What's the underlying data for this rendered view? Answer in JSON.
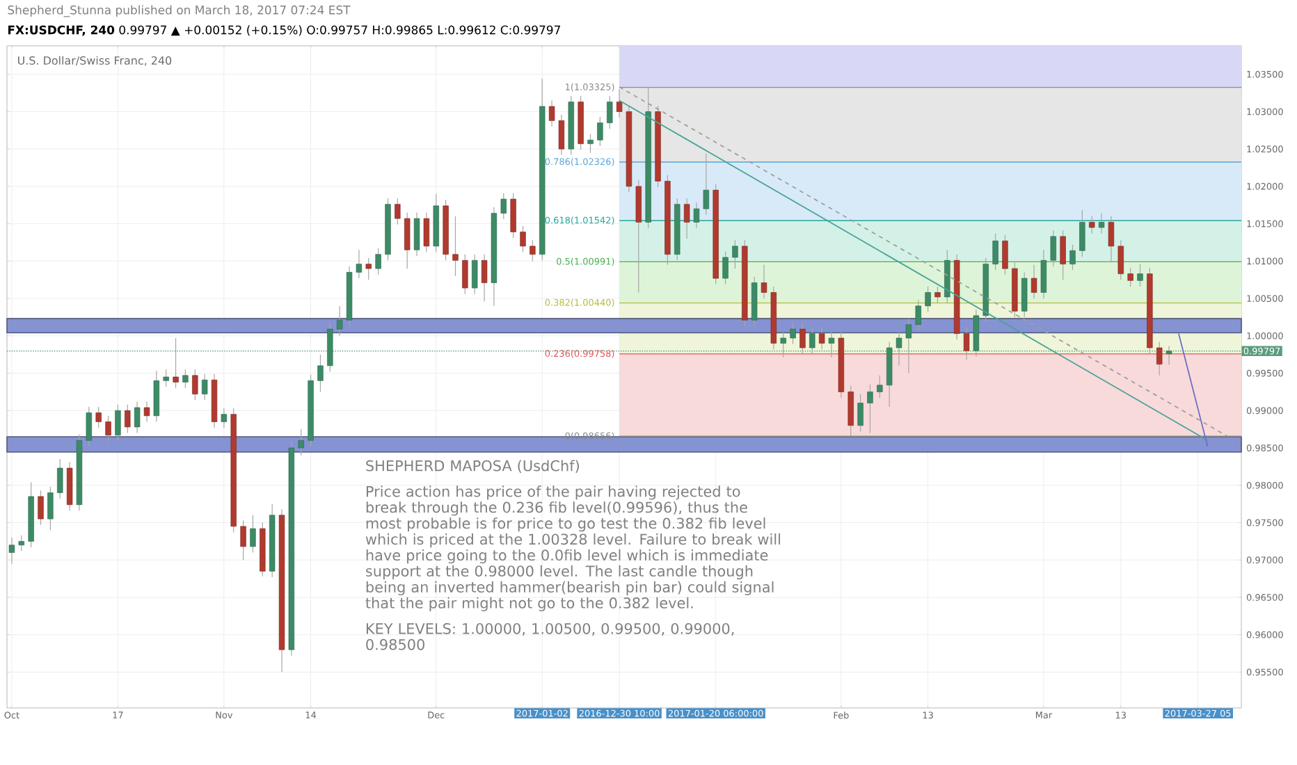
{
  "chart_data": {
    "type": "candlestick",
    "subtitle": "Shepherd_Stunna published on March 18, 2017 07:24 EST",
    "title": "**FX:USDCHF, 240** 0.99797 ▲ +0.00152 (+0.15%) O:0.99757 H:0.99865 L:0.99612 C:0.99797",
    "annotations": [
      "U.S. Dollar/Swiss Franc, 240",
      "SHEPHERD MAPOSA (UsdChf)",
      "Price action has price of the pair having rejected to break through the 0.236 fib level(0.99596), thus the most probable is for price to go test the 0.382 fib level which is priced at the 1.00328 level. Failure to break will have price going to the 0.0fib level which is immediate support at the 0.98000 level. The last candle though being an inverted hammer(bearish pin bar) could signal that the pair might not go to the 0.382 level.",
      "KEY LEVELS: 1.00000, 1.00500, 0.99500, 0.99000, 0.98500"
    ],
    "categories": [
      "Oct",
      null,
      null,
      null,
      null,
      null,
      null,
      null,
      null,
      null,
      null,
      "17",
      null,
      null,
      null,
      null,
      null,
      null,
      null,
      null,
      null,
      null,
      "Nov",
      null,
      null,
      null,
      null,
      null,
      null,
      null,
      null,
      "14",
      null,
      null,
      null,
      null,
      null,
      null,
      null,
      null,
      null,
      null,
      null,
      null,
      "Dec",
      null,
      null,
      null,
      null,
      null,
      null,
      null,
      null,
      null,
      null,
      "2017-01-02",
      null,
      null,
      null,
      null,
      null,
      null,
      null,
      "2016-12-30 10:00",
      null,
      null,
      null,
      null,
      null,
      null,
      null,
      null,
      null,
      "2017-01-20 06:00:00",
      null,
      null,
      null,
      null,
      null,
      null,
      null,
      null,
      null,
      null,
      null,
      null,
      "Feb",
      null,
      null,
      null,
      null,
      null,
      null,
      null,
      null,
      "13",
      null,
      null,
      null,
      null,
      null,
      null,
      null,
      null,
      null,
      null,
      null,
      "Mar",
      null,
      null,
      null,
      null,
      null,
      null,
      null,
      "13",
      null,
      null,
      null,
      null,
      null,
      null,
      null,
      "2017-03-27 05",
      null,
      null,
      null,
      null
    ],
    "ohlc": [
      [
        0.971,
        0.973,
        0.9695,
        0.972
      ],
      [
        0.972,
        0.9733,
        0.9712,
        0.9725
      ],
      [
        0.9725,
        0.9804,
        0.9717,
        0.9785
      ],
      [
        0.9785,
        0.9793,
        0.9747,
        0.9755
      ],
      [
        0.9755,
        0.9798,
        0.974,
        0.979
      ],
      [
        0.979,
        0.9835,
        0.9782,
        0.9823
      ],
      [
        0.9823,
        0.9831,
        0.9766,
        0.9774
      ],
      [
        0.9774,
        0.9868,
        0.9766,
        0.986
      ],
      [
        0.986,
        0.9905,
        0.9852,
        0.9897
      ],
      [
        0.9897,
        0.9905,
        0.9877,
        0.9885
      ],
      [
        0.9885,
        0.9893,
        0.9859,
        0.9867
      ],
      [
        0.9867,
        0.9908,
        0.9859,
        0.99
      ],
      [
        0.99,
        0.9908,
        0.987,
        0.9878
      ],
      [
        0.9878,
        0.9912,
        0.987,
        0.9904
      ],
      [
        0.9904,
        0.9912,
        0.9885,
        0.9893
      ],
      [
        0.9893,
        0.9953,
        0.9885,
        0.994
      ],
      [
        0.994,
        0.9955,
        0.9932,
        0.9945
      ],
      [
        0.9945,
        0.9997,
        0.993,
        0.9938
      ],
      [
        0.9938,
        0.9955,
        0.993,
        0.9947
      ],
      [
        0.9947,
        0.9955,
        0.9914,
        0.9922
      ],
      [
        0.9922,
        0.9949,
        0.9914,
        0.9941
      ],
      [
        0.9941,
        0.9949,
        0.9877,
        0.9885
      ],
      [
        0.9885,
        0.9903,
        0.9877,
        0.9895
      ],
      [
        0.9895,
        0.9903,
        0.9737,
        0.9745
      ],
      [
        0.9745,
        0.9753,
        0.97,
        0.9718
      ],
      [
        0.9718,
        0.976,
        0.971,
        0.9742
      ],
      [
        0.9742,
        0.975,
        0.9678,
        0.9685
      ],
      [
        0.9685,
        0.9775,
        0.9677,
        0.976
      ],
      [
        0.976,
        0.9768,
        0.955,
        0.958
      ],
      [
        0.958,
        0.9858,
        0.9572,
        0.985
      ],
      [
        0.985,
        0.9875,
        0.984,
        0.986
      ],
      [
        0.986,
        0.9948,
        0.9852,
        0.994
      ],
      [
        0.994,
        0.9975,
        0.9925,
        0.996
      ],
      [
        0.996,
        1.0017,
        0.9952,
        1.0009
      ],
      [
        1.0009,
        1.004,
        1.0,
        1.0021
      ],
      [
        1.0021,
        1.0093,
        1.0013,
        1.0085
      ],
      [
        1.0085,
        1.0115,
        1.0077,
        1.0096
      ],
      [
        1.0096,
        1.0104,
        1.0075,
        1.009
      ],
      [
        1.009,
        1.0117,
        1.0082,
        1.0109
      ],
      [
        1.0109,
        1.0184,
        1.0101,
        1.0176
      ],
      [
        1.0176,
        1.0184,
        1.0149,
        1.0157
      ],
      [
        1.0157,
        1.0165,
        1.009,
        1.0115
      ],
      [
        1.0115,
        1.0165,
        1.0107,
        1.0157
      ],
      [
        1.0157,
        1.0165,
        1.0112,
        1.012
      ],
      [
        1.012,
        1.019,
        1.0112,
        1.0174
      ],
      [
        1.0174,
        1.0182,
        1.0101,
        1.0109
      ],
      [
        1.0109,
        1.016,
        1.008,
        1.0101
      ],
      [
        1.0101,
        1.0109,
        1.0056,
        1.0064
      ],
      [
        1.0064,
        1.0109,
        1.0056,
        1.0101
      ],
      [
        1.0101,
        1.0109,
        1.0046,
        1.0071
      ],
      [
        1.0071,
        1.0172,
        1.004,
        1.0164
      ],
      [
        1.0164,
        1.0191,
        1.0156,
        1.0183
      ],
      [
        1.0183,
        1.0191,
        1.0131,
        1.0139
      ],
      [
        1.0139,
        1.0147,
        1.0112,
        1.012
      ],
      [
        1.012,
        1.0128,
        1.01,
        1.0109
      ],
      [
        1.0109,
        1.0344,
        1.0101,
        1.0307
      ],
      [
        1.0307,
        1.0315,
        1.028,
        1.0288
      ],
      [
        1.0288,
        1.0296,
        1.0242,
        1.025
      ],
      [
        1.025,
        1.0321,
        1.0242,
        1.0313
      ],
      [
        1.0313,
        1.0321,
        1.0249,
        1.0257
      ],
      [
        1.0257,
        1.027,
        1.0245,
        1.0262
      ],
      [
        1.0262,
        1.0293,
        1.0254,
        1.0285
      ],
      [
        1.0285,
        1.0321,
        1.0277,
        1.0313
      ],
      [
        1.0313,
        1.033,
        1.0292,
        1.03
      ],
      [
        1.03,
        1.0308,
        1.0192,
        1.02
      ],
      [
        1.02,
        1.0208,
        1.0058,
        1.0152
      ],
      [
        1.0152,
        1.0333,
        1.0144,
        1.03
      ],
      [
        1.03,
        1.0308,
        1.0199,
        1.0207
      ],
      [
        1.0207,
        1.0215,
        1.0095,
        1.0109
      ],
      [
        1.0109,
        1.0184,
        1.0101,
        1.0176
      ],
      [
        1.0176,
        1.0184,
        1.013,
        1.0152
      ],
      [
        1.0152,
        1.0178,
        1.0144,
        1.017
      ],
      [
        1.017,
        1.0244,
        1.0162,
        1.0195
      ],
      [
        1.0195,
        1.0203,
        1.0069,
        1.0077
      ],
      [
        1.0077,
        1.0113,
        1.0069,
        1.0105
      ],
      [
        1.0105,
        1.0128,
        1.009,
        1.012
      ],
      [
        1.012,
        1.0128,
        1.0013,
        1.0021
      ],
      [
        1.0021,
        1.0079,
        1.0013,
        1.0071
      ],
      [
        1.0071,
        1.0095,
        1.005,
        1.0058
      ],
      [
        1.0058,
        1.0066,
        0.9982,
        0.999
      ],
      [
        0.999,
        1.0005,
        0.9971,
        0.9997
      ],
      [
        0.9997,
        1.0017,
        0.9989,
        1.0009
      ],
      [
        1.0009,
        1.0017,
        0.9976,
        0.9984
      ],
      [
        0.9984,
        1.0011,
        0.9976,
        1.0003
      ],
      [
        1.0003,
        1.0011,
        0.9982,
        0.999
      ],
      [
        0.999,
        1.0005,
        0.9971,
        0.9997
      ],
      [
        0.9997,
        1.0005,
        0.9917,
        0.9925
      ],
      [
        0.9925,
        0.9933,
        0.9866,
        0.988
      ],
      [
        0.988,
        0.9922,
        0.9872,
        0.991
      ],
      [
        0.991,
        0.9935,
        0.987,
        0.9925
      ],
      [
        0.9925,
        0.9947,
        0.9917,
        0.9934
      ],
      [
        0.9934,
        0.9992,
        0.9905,
        0.9984
      ],
      [
        0.9984,
        1.0005,
        0.996,
        0.9997
      ],
      [
        0.9997,
        1.0023,
        0.995,
        1.0015
      ],
      [
        1.0015,
        1.0048,
        1.0007,
        1.004
      ],
      [
        1.004,
        1.0066,
        1.0032,
        1.0058
      ],
      [
        1.0058,
        1.0066,
        1.0044,
        1.0052
      ],
      [
        1.0052,
        1.0115,
        1.0044,
        1.0101
      ],
      [
        1.0101,
        1.0109,
        0.9995,
        1.0003
      ],
      [
        1.0003,
        1.0011,
        0.9968,
        0.998
      ],
      [
        0.998,
        1.0035,
        0.9972,
        1.0027
      ],
      [
        1.0027,
        1.0104,
        1.0019,
        1.0096
      ],
      [
        1.0096,
        1.0137,
        1.0088,
        1.0127
      ],
      [
        1.0127,
        1.0135,
        1.0082,
        1.009
      ],
      [
        1.009,
        1.0098,
        1.0025,
        1.0033
      ],
      [
        1.0033,
        1.0085,
        1.0025,
        1.0077
      ],
      [
        1.0077,
        1.0095,
        1.005,
        1.0058
      ],
      [
        1.0058,
        1.0115,
        1.005,
        1.0101
      ],
      [
        1.0101,
        1.0141,
        1.0093,
        1.0133
      ],
      [
        1.0133,
        1.0141,
        1.0075,
        1.0096
      ],
      [
        1.0096,
        1.0122,
        1.0088,
        1.0114
      ],
      [
        1.0114,
        1.0168,
        1.0106,
        1.0152
      ],
      [
        1.0152,
        1.016,
        1.0137,
        1.0145
      ],
      [
        1.0145,
        1.0164,
        1.0137,
        1.0152
      ],
      [
        1.0152,
        1.016,
        1.0098,
        1.012
      ],
      [
        1.012,
        1.0128,
        1.0075,
        1.0083
      ],
      [
        1.0083,
        1.0091,
        1.0066,
        1.0074
      ],
      [
        1.0074,
        1.0096,
        1.0066,
        1.0083
      ],
      [
        1.0083,
        1.0091,
        0.9976,
        0.9984
      ],
      [
        0.9984,
        0.9992,
        0.9947,
        0.9962
      ],
      [
        0.99757,
        0.99865,
        0.99612,
        0.99797
      ],
      null,
      null,
      null,
      null,
      null,
      null,
      null
    ],
    "series": [
      {
        "type": "line",
        "color": "#4aa39a",
        "line_style": "solid",
        "values": [
          null,
          null,
          null,
          null,
          null,
          null,
          null,
          null,
          null,
          null,
          null,
          null,
          null,
          null,
          null,
          null,
          null,
          null,
          null,
          null,
          null,
          null,
          null,
          null,
          null,
          null,
          null,
          null,
          null,
          null,
          null,
          null,
          null,
          null,
          null,
          null,
          null,
          null,
          null,
          null,
          null,
          null,
          null,
          null,
          null,
          null,
          null,
          null,
          null,
          null,
          null,
          null,
          null,
          null,
          null,
          null,
          null,
          null,
          null,
          null,
          null,
          null,
          null,
          1.0315,
          null,
          null,
          null,
          null,
          null,
          null,
          null,
          null,
          null,
          null,
          null,
          null,
          null,
          null,
          null,
          null,
          null,
          null,
          null,
          null,
          null,
          null,
          null,
          null,
          null,
          null,
          null,
          null,
          null,
          null,
          null,
          null,
          null,
          null,
          null,
          null,
          null,
          null,
          null,
          null,
          null,
          null,
          null,
          null,
          null,
          null,
          null,
          null,
          null,
          null,
          null,
          null,
          null,
          null,
          null,
          null,
          null,
          null,
          null,
          null,
          0.986,
          null,
          null,
          null
        ]
      },
      {
        "type": "line",
        "color": "#9e9e9e",
        "line_style": "dashed",
        "values": [
          null,
          null,
          null,
          null,
          null,
          null,
          null,
          null,
          null,
          null,
          null,
          null,
          null,
          null,
          null,
          null,
          null,
          null,
          null,
          null,
          null,
          null,
          null,
          null,
          null,
          null,
          null,
          null,
          null,
          null,
          null,
          null,
          null,
          null,
          null,
          null,
          null,
          null,
          null,
          null,
          null,
          null,
          null,
          null,
          null,
          null,
          null,
          null,
          null,
          null,
          null,
          null,
          null,
          null,
          null,
          null,
          null,
          null,
          null,
          null,
          null,
          null,
          null,
          1.0333,
          null,
          null,
          null,
          null,
          null,
          null,
          null,
          null,
          null,
          null,
          null,
          null,
          null,
          null,
          null,
          null,
          null,
          null,
          null,
          null,
          null,
          null,
          null,
          null,
          null,
          null,
          null,
          null,
          null,
          null,
          null,
          null,
          null,
          null,
          null,
          null,
          null,
          null,
          null,
          null,
          null,
          null,
          null,
          null,
          null,
          null,
          null,
          null,
          null,
          null,
          null,
          null,
          null,
          null,
          null,
          null,
          null,
          null,
          null,
          null,
          null,
          null,
          0.9866,
          null
        ]
      },
      {
        "type": "line",
        "color": "#6a6fc4",
        "line_style": "solid",
        "values": [
          null,
          null,
          null,
          null,
          null,
          null,
          null,
          null,
          null,
          null,
          null,
          null,
          null,
          null,
          null,
          null,
          null,
          null,
          null,
          null,
          null,
          null,
          null,
          null,
          null,
          null,
          null,
          null,
          null,
          null,
          null,
          null,
          null,
          null,
          null,
          null,
          null,
          null,
          null,
          null,
          null,
          null,
          null,
          null,
          null,
          null,
          null,
          null,
          null,
          null,
          null,
          null,
          null,
          null,
          null,
          null,
          null,
          null,
          null,
          null,
          null,
          null,
          null,
          null,
          null,
          null,
          null,
          null,
          null,
          null,
          null,
          null,
          null,
          null,
          null,
          null,
          null,
          null,
          null,
          null,
          null,
          null,
          null,
          null,
          null,
          null,
          null,
          null,
          null,
          null,
          null,
          null,
          null,
          null,
          null,
          null,
          null,
          null,
          null,
          null,
          null,
          null,
          null,
          null,
          null,
          null,
          null,
          null,
          null,
          null,
          null,
          null,
          null,
          null,
          null,
          null,
          null,
          null,
          null,
          null,
          null,
          1.0003,
          null,
          null,
          0.9852,
          null,
          null,
          null
        ]
      }
    ],
    "ylim": [
      0.9502,
      1.0388
    ],
    "yticks": [
      {
        "value": 0.955,
        "label": "0.95500"
      },
      {
        "value": 0.96,
        "label": "0.96000"
      },
      {
        "value": 0.965,
        "label": "0.96500"
      },
      {
        "value": 0.97,
        "label": "0.97000"
      },
      {
        "value": 0.975,
        "label": "0.97500"
      },
      {
        "value": 0.98,
        "label": "0.98000"
      },
      {
        "value": 0.985,
        "label": "0.98500"
      },
      {
        "value": 0.99,
        "label": "0.99000"
      },
      {
        "value": 0.995,
        "label": "0.99500"
      },
      {
        "value": 1.0,
        "label": "1.00000"
      },
      {
        "value": 1.005,
        "label": "1.00500"
      },
      {
        "value": 1.01,
        "label": "1.01000"
      },
      {
        "value": 1.015,
        "label": "1.01500"
      },
      {
        "value": 1.02,
        "label": "1.02000"
      },
      {
        "value": 1.025,
        "label": "1.02500"
      },
      {
        "value": 1.03,
        "label": "1.03000"
      },
      {
        "value": 1.035,
        "label": "1.03500"
      }
    ],
    "ref_lines": [
      {
        "axis": "y",
        "value": 1.03325,
        "label": "1(1.03325)",
        "color": "#8a8a8a"
      },
      {
        "axis": "y",
        "value": 1.02326,
        "label": "0.786(1.02326)",
        "color": "#5aa5d6"
      },
      {
        "axis": "y",
        "value": 1.01542,
        "label": "0.618(1.01542)",
        "color": "#26a69a"
      },
      {
        "axis": "y",
        "value": 1.00991,
        "label": "0.5(1.00991)",
        "color": "#4caf50"
      },
      {
        "axis": "y",
        "value": 1.0044,
        "label": "0.382(1.00440)",
        "color": "#b5bd3c"
      },
      {
        "axis": "y",
        "value": 0.99758,
        "label": "0.236(0.99758)",
        "color": "#e05555"
      },
      {
        "axis": "y",
        "value": 0.98656,
        "label": "0(0.98656)",
        "color": "#8a8a8a"
      },
      {
        "axis": "y",
        "value": 0.99797,
        "label": "0.99797",
        "color": "#5c9c7c",
        "line_style": "dotted"
      }
    ],
    "bands": [
      {
        "axis": "y",
        "from": 1.03325,
        "to": 1.0388,
        "color": "#d8d8f6"
      },
      {
        "axis": "y",
        "from": 1.02326,
        "to": 1.03325,
        "color": "#e6e6e6"
      },
      {
        "axis": "y",
        "from": 1.01542,
        "to": 1.02326,
        "color": "#d8eaf7"
      },
      {
        "axis": "y",
        "from": 1.00991,
        "to": 1.01542,
        "color": "#d4f1e7"
      },
      {
        "axis": "y",
        "from": 1.0044,
        "to": 1.00991,
        "color": "#ddf4d8"
      },
      {
        "axis": "y",
        "from": 0.99758,
        "to": 1.0044,
        "color": "#eff5d8"
      },
      {
        "axis": "y",
        "from": 0.98656,
        "to": 0.99758,
        "color": "#f8dada"
      },
      {
        "axis": "y",
        "from": 1.0004,
        "to": 1.0023,
        "color": "#8593d2"
      },
      {
        "axis": "y",
        "from": 0.98444,
        "to": 0.98649,
        "color": "#8593d2"
      }
    ],
    "grid": true
  }
}
